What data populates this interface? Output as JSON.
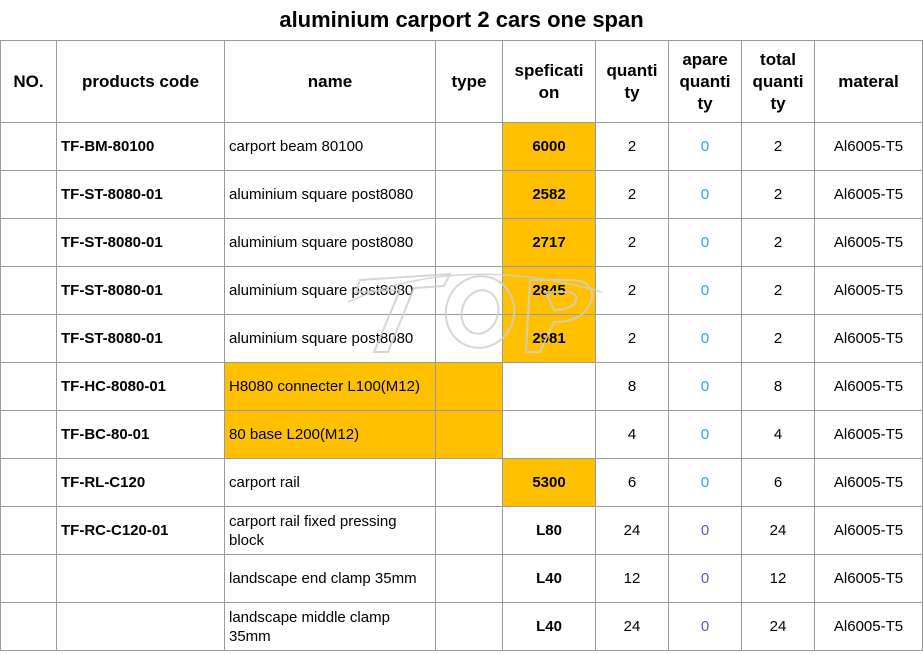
{
  "title": "aluminium carport 2 cars one span",
  "headers": {
    "no": "NO.",
    "code": "products code",
    "name": "name",
    "type": "type",
    "spec": "speficati on",
    "quantity": "quanti ty",
    "spare": "apare quanti ty",
    "total": "total quanti ty",
    "material": "materal"
  },
  "highlight_color": "#ffc000",
  "rows": [
    {
      "no": "",
      "code": "TF-BM-80100",
      "name": "carport beam 80100",
      "type": "",
      "spec": "6000",
      "qty": "2",
      "spare": "0",
      "total": "2",
      "material": "Al6005-T5"
    },
    {
      "no": "",
      "code": "TF-ST-8080-01",
      "name": "aluminium square post8080",
      "type": "",
      "spec": "2582",
      "qty": "2",
      "spare": "0",
      "total": "2",
      "material": "Al6005-T5"
    },
    {
      "no": "",
      "code": "TF-ST-8080-01",
      "name": "aluminium square post8080",
      "type": "",
      "spec": "2717",
      "qty": "2",
      "spare": "0",
      "total": "2",
      "material": "Al6005-T5"
    },
    {
      "no": "",
      "code": "TF-ST-8080-01",
      "name": "aluminium square post8080",
      "type": "",
      "spec": "2845",
      "qty": "2",
      "spare": "0",
      "total": "2",
      "material": "Al6005-T5"
    },
    {
      "no": "",
      "code": "TF-ST-8080-01",
      "name": "aluminium square post8080",
      "type": "",
      "spec": "2981",
      "qty": "2",
      "spare": "0",
      "total": "2",
      "material": "Al6005-T5"
    },
    {
      "no": "",
      "code": "TF-HC-8080-01",
      "name": "H8080 connecter L100(M12)",
      "type": "",
      "spec": "",
      "qty": "8",
      "spare": "0",
      "total": "8",
      "material": "Al6005-T5"
    },
    {
      "no": "",
      "code": "TF-BC-80-01",
      "name": "80 base L200(M12)",
      "type": "",
      "spec": "",
      "qty": "4",
      "spare": "0",
      "total": "4",
      "material": "Al6005-T5"
    },
    {
      "no": "",
      "code": "TF-RL-C120",
      "name": "carport rail",
      "type": "",
      "spec": "5300",
      "qty": "6",
      "spare": "0",
      "total": "6",
      "material": "Al6005-T5"
    },
    {
      "no": "",
      "code": "TF-RC-C120-01",
      "name": "carport rail fixed pressing block",
      "type": "",
      "spec": "L80",
      "qty": "24",
      "spare": "0",
      "total": "24",
      "material": "Al6005-T5"
    },
    {
      "no": "",
      "code": "",
      "name": "landscape end clamp 35mm",
      "type": "",
      "spec": "L40",
      "qty": "12",
      "spare": "0",
      "total": "12",
      "material": "Al6005-T5"
    },
    {
      "no": "",
      "code": "",
      "name": "landscape middle clamp 35mm",
      "type": "",
      "spec": "L40",
      "qty": "24",
      "spare": "0",
      "total": "24",
      "material": "Al6005-T5"
    }
  ]
}
